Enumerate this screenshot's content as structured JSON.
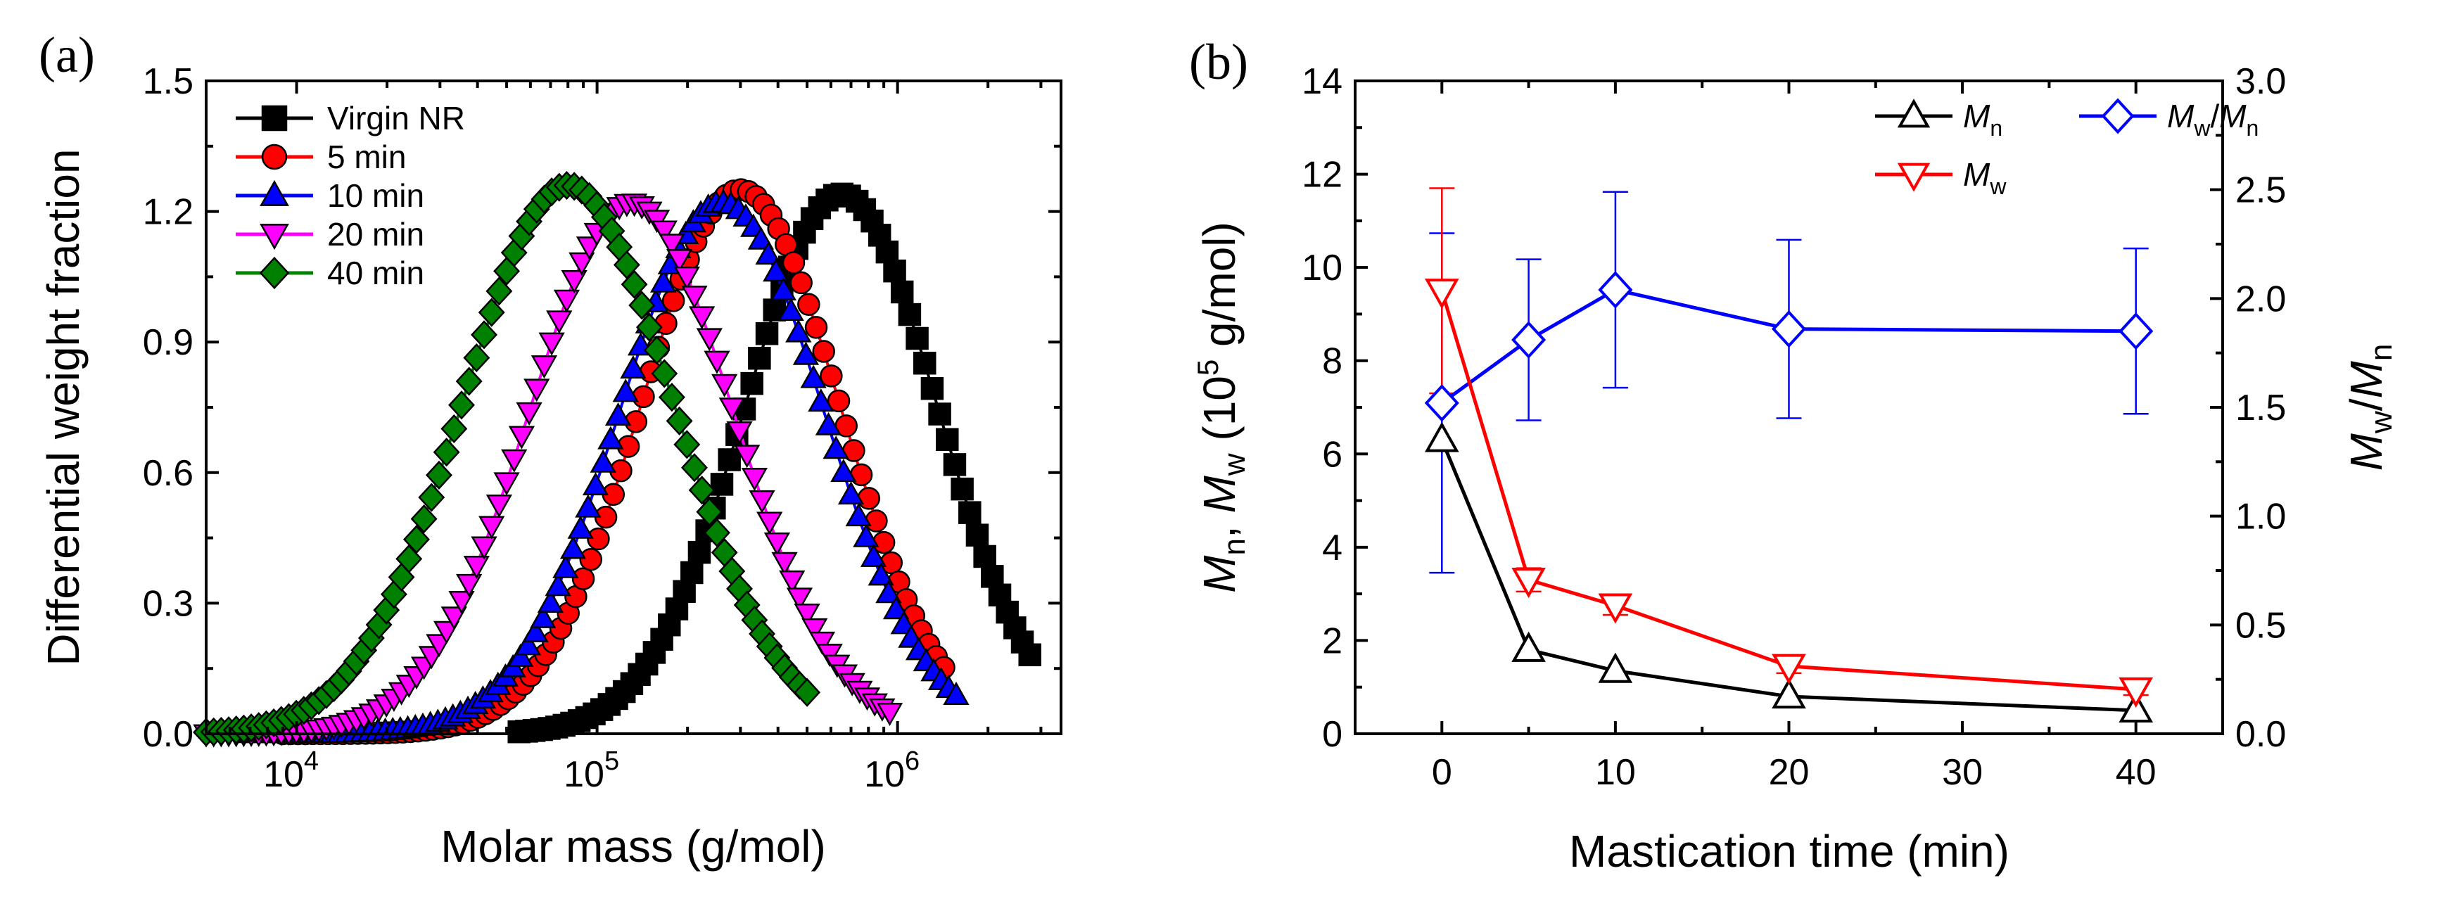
{
  "panels": {
    "a": {
      "label": "(a)"
    },
    "b": {
      "label": "(b)"
    }
  },
  "chart_data": [
    {
      "id": "a",
      "type": "scatter",
      "title": "",
      "xlabel": "Molar mass (g/mol)",
      "ylabel": "Differential weight fraction",
      "xscale": "log",
      "xlim": [
        5000,
        3500000
      ],
      "ylim": [
        0,
        1.5
      ],
      "xticks": [
        {
          "value": 10000,
          "base": "10",
          "exp": "4"
        },
        {
          "value": 100000,
          "base": "10",
          "exp": "5"
        },
        {
          "value": 1000000,
          "base": "10",
          "exp": "6"
        }
      ],
      "yticks": [
        {
          "value": 0.0,
          "label": "0.0"
        },
        {
          "value": 0.3,
          "label": "0.3"
        },
        {
          "value": 0.6,
          "label": "0.6"
        },
        {
          "value": 0.9,
          "label": "0.9"
        },
        {
          "value": 1.2,
          "label": "1.2"
        },
        {
          "value": 1.5,
          "label": "1.5"
        }
      ],
      "legend_position": "top-left",
      "series": [
        {
          "name": "Virgin NR",
          "color": "#000000",
          "marker": "square",
          "peak_x": 650000,
          "peak_y": 1.24,
          "sigma": 0.32,
          "x_min": 55000,
          "x_max": 2800000
        },
        {
          "name": "5 min",
          "color": "#ff0000",
          "marker": "circle",
          "peak_x": 300000,
          "peak_y": 1.25,
          "sigma": 0.33,
          "x_min": 9000,
          "x_max": 1500000
        },
        {
          "name": "10 min",
          "color": "#0000ff",
          "marker": "triangle-up",
          "peak_x": 260000,
          "peak_y": 1.22,
          "sigma": 0.34,
          "x_min": 7000,
          "x_max": 1600000
        },
        {
          "name": "20 min",
          "color": "#ff00ff",
          "marker": "triangle-down",
          "peak_x": 130000,
          "peak_y": 1.22,
          "sigma": 0.34,
          "x_min": 5000,
          "x_max": 950000
        },
        {
          "name": "40 min",
          "color": "#008000",
          "marker": "diamond",
          "peak_x": 80000,
          "peak_y": 1.26,
          "sigma": 0.35,
          "x_min": 5000,
          "x_max": 500000
        }
      ]
    },
    {
      "id": "b",
      "type": "line",
      "title": "",
      "xlabel": "Mastication time (min)",
      "ylabel": "Mn, Mw (10^5 g/mol)",
      "ylabel_parts": {
        "m": "M",
        "n": "n",
        "w": "w",
        "comma": ", ",
        "open": " (10",
        "exp": "5",
        "unit": " g/mol)"
      },
      "y2label_parts": {
        "m": "M",
        "w": "w",
        "slash": "/",
        "n": "n"
      },
      "xlim": [
        -5,
        45
      ],
      "ylim": [
        0,
        14
      ],
      "y2lim": [
        0,
        3.0
      ],
      "xticks": [
        {
          "value": 0,
          "label": "0"
        },
        {
          "value": 10,
          "label": "10"
        },
        {
          "value": 20,
          "label": "20"
        },
        {
          "value": 30,
          "label": "30"
        },
        {
          "value": 40,
          "label": "40"
        }
      ],
      "yticks": [
        {
          "value": 0,
          "label": "0"
        },
        {
          "value": 2,
          "label": "2"
        },
        {
          "value": 4,
          "label": "4"
        },
        {
          "value": 6,
          "label": "6"
        },
        {
          "value": 8,
          "label": "8"
        },
        {
          "value": 10,
          "label": "10"
        },
        {
          "value": 12,
          "label": "12"
        },
        {
          "value": 14,
          "label": "14"
        }
      ],
      "y2ticks": [
        {
          "value": 0.0,
          "label": "0.0"
        },
        {
          "value": 0.5,
          "label": "0.5"
        },
        {
          "value": 1.0,
          "label": "1.0"
        },
        {
          "value": 1.5,
          "label": "1.5"
        },
        {
          "value": 2.0,
          "label": "2.0"
        },
        {
          "value": 2.5,
          "label": "2.5"
        },
        {
          "value": 3.0,
          "label": "3.0"
        }
      ],
      "legend_position": "top-right",
      "series": [
        {
          "name": "Mn",
          "legend_main": "M",
          "legend_sub": "n",
          "color": "#000000",
          "marker": "triangle-up",
          "axis": "left",
          "x": [
            0,
            5,
            10,
            20,
            40
          ],
          "y": [
            6.3,
            1.8,
            1.35,
            0.8,
            0.5
          ]
        },
        {
          "name": "Mw/Mn",
          "legend_main": "M",
          "legend_sub": "w",
          "legend_slash": "/",
          "legend_main2": "M",
          "legend_sub2": "n",
          "color": "#0000ff",
          "marker": "diamond",
          "axis": "right",
          "x": [
            0,
            5,
            10,
            20,
            40
          ],
          "y": [
            1.52,
            1.81,
            2.04,
            1.86,
            1.85
          ],
          "err": [
            0.78,
            0.37,
            0.45,
            0.41,
            0.38
          ]
        },
        {
          "name": "Mw",
          "legend_main": "M",
          "legend_sub": "w",
          "color": "#ff0000",
          "marker": "triangle-down",
          "axis": "left",
          "x": [
            0,
            5,
            10,
            20,
            40
          ],
          "y": [
            9.5,
            3.3,
            2.75,
            1.45,
            0.95
          ],
          "err": [
            2.2,
            0.25,
            0.2,
            0.15,
            0.12
          ]
        }
      ]
    }
  ]
}
